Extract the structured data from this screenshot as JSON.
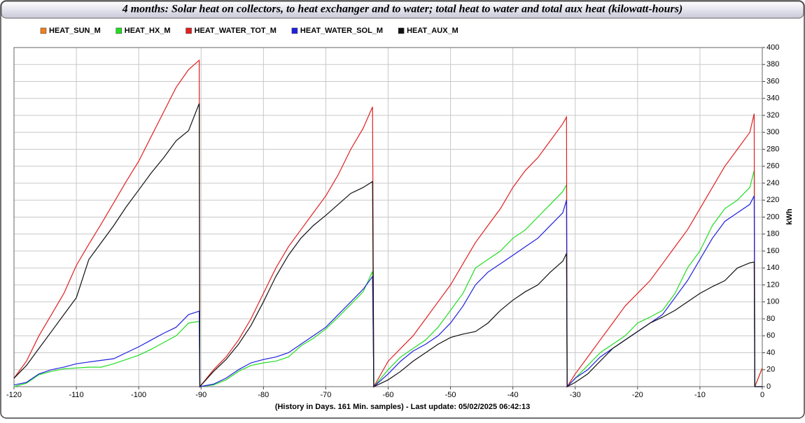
{
  "chart_data": {
    "type": "line",
    "title": "4 months: Solar heat on collectors, to heat exchanger and to water; total heat to water and total aux heat (kilowatt-hours)",
    "x_label": "(History in Days. 161 Min. samples) - Last update: 05/02/2025 06:42:13",
    "y_label": "kWh",
    "xlim": [
      -120,
      0
    ],
    "ylim": [
      0,
      400
    ],
    "xticks": [
      -120,
      -110,
      -100,
      -90,
      -80,
      -70,
      -60,
      -50,
      -40,
      -30,
      -20,
      -10,
      0
    ],
    "yticks": [
      0,
      20,
      40,
      60,
      80,
      100,
      120,
      140,
      160,
      180,
      200,
      220,
      240,
      260,
      280,
      300,
      320,
      340,
      360,
      380,
      400
    ],
    "grid": true,
    "legend": "top-left",
    "x": [
      -120,
      -118,
      -116,
      -114,
      -112,
      -110,
      -108,
      -106,
      -104,
      -102,
      -100,
      -98,
      -96,
      -94,
      -92,
      -90.3,
      -90.2,
      -88,
      -86,
      -84,
      -82,
      -80,
      -78,
      -76,
      -74,
      -72,
      -70,
      -68,
      -66,
      -64,
      -62.5,
      -62.3,
      -60,
      -58,
      -56,
      -54,
      -52,
      -50,
      -48,
      -46,
      -44,
      -42,
      -40,
      -38,
      -36,
      -34,
      -32,
      -31.4,
      -31.3,
      -30,
      -28,
      -26,
      -24,
      -22,
      -20,
      -18,
      -16,
      -14,
      -12,
      -10,
      -8,
      -6,
      -4,
      -2,
      -1.3,
      -1.2,
      0
    ],
    "series": [
      {
        "name": "HEAT_SUN_M",
        "color": "#f08020",
        "values": [
          null,
          null,
          null,
          null,
          null,
          null,
          null,
          null,
          null,
          null,
          null,
          null,
          null,
          null,
          null,
          null,
          null,
          null,
          null,
          null,
          null,
          null,
          null,
          null,
          null,
          null,
          null,
          null,
          null,
          null,
          null,
          null,
          null,
          null,
          null,
          null,
          null,
          null,
          null,
          null,
          null,
          null,
          null,
          null,
          null,
          null,
          null,
          null,
          null,
          null,
          null,
          null,
          null,
          null,
          null,
          null,
          null,
          null,
          null,
          null,
          null,
          null,
          null,
          null,
          null,
          null,
          null
        ]
      },
      {
        "name": "HEAT_HX_M",
        "color": "#22dd22",
        "values": [
          0,
          4,
          14,
          18,
          21,
          22,
          23,
          23,
          27,
          32,
          37,
          44,
          52,
          60,
          75,
          77,
          0,
          2,
          8,
          18,
          25,
          28,
          30,
          35,
          48,
          57,
          68,
          82,
          97,
          112,
          136,
          0,
          20,
          35,
          45,
          55,
          70,
          90,
          110,
          140,
          150,
          160,
          175,
          185,
          200,
          215,
          230,
          238,
          0,
          10,
          25,
          40,
          50,
          60,
          75,
          82,
          90,
          110,
          140,
          160,
          190,
          210,
          220,
          235,
          255,
          0,
          22
        ]
      },
      {
        "name": "HEAT_WATER_TOT_M",
        "color": "#e02020",
        "values": [
          10,
          30,
          60,
          85,
          110,
          143,
          168,
          192,
          217,
          242,
          266,
          295,
          324,
          353,
          374,
          385,
          0,
          20,
          35,
          55,
          80,
          110,
          140,
          165,
          185,
          205,
          225,
          250,
          280,
          305,
          330,
          0,
          30,
          45,
          60,
          80,
          100,
          120,
          145,
          170,
          190,
          210,
          235,
          255,
          270,
          290,
          310,
          318,
          0,
          15,
          35,
          55,
          75,
          95,
          110,
          125,
          145,
          165,
          185,
          210,
          235,
          260,
          280,
          300,
          322,
          0,
          22
        ]
      },
      {
        "name": "HEAT_WATER_SOL_M",
        "color": "#2020e0",
        "values": [
          2,
          5,
          15,
          20,
          23,
          27,
          29,
          31,
          33,
          40,
          47,
          55,
          63,
          70,
          85,
          89,
          0,
          3,
          10,
          20,
          28,
          32,
          35,
          40,
          50,
          60,
          70,
          85,
          100,
          115,
          130,
          0,
          15,
          30,
          42,
          50,
          60,
          75,
          95,
          120,
          135,
          145,
          155,
          165,
          175,
          190,
          205,
          220,
          0,
          10,
          20,
          35,
          45,
          55,
          65,
          75,
          85,
          105,
          125,
          150,
          175,
          195,
          205,
          215,
          225,
          0,
          0
        ]
      },
      {
        "name": "HEAT_AUX_M",
        "color": "#111111",
        "values": [
          10,
          25,
          45,
          65,
          85,
          105,
          150,
          170,
          190,
          212,
          232,
          252,
          270,
          290,
          302,
          334,
          0,
          18,
          32,
          50,
          72,
          100,
          130,
          155,
          175,
          190,
          202,
          215,
          228,
          235,
          242,
          0,
          8,
          18,
          30,
          40,
          50,
          58,
          62,
          65,
          75,
          90,
          102,
          112,
          120,
          135,
          148,
          157,
          0,
          5,
          15,
          30,
          45,
          55,
          65,
          75,
          82,
          90,
          100,
          110,
          118,
          125,
          140,
          146,
          147,
          0,
          0
        ]
      }
    ]
  }
}
